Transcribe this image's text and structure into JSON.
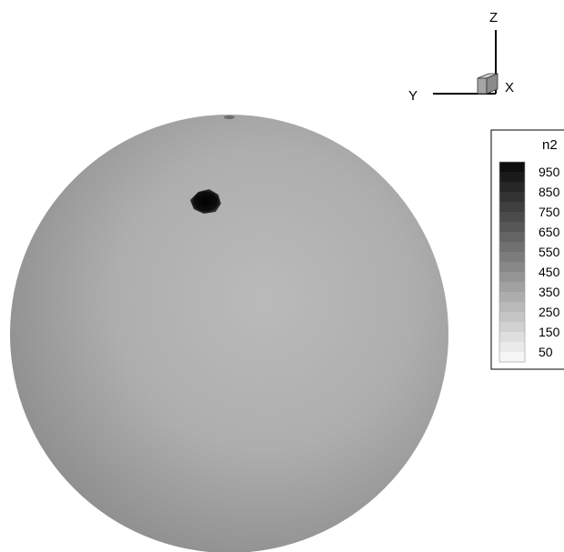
{
  "axes_triad": {
    "z_label": "Z",
    "y_label": "Y",
    "x_label": "X"
  },
  "legend": {
    "title": "n2",
    "min": 0,
    "max": 1000,
    "step": 50,
    "labels": [
      "950",
      "850",
      "750",
      "650",
      "550",
      "450",
      "350",
      "250",
      "150",
      "50"
    ],
    "colors": {
      "high": "#0a0a0a",
      "low": "#ffffff"
    }
  },
  "contour": {
    "sphere_base_value": 350,
    "spot_value": 1000,
    "sphere_color": "#a9a9a9",
    "sphere_highlight": "#b9b9b9",
    "sphere_edge": "#8e8e8e",
    "spot_color": "#050505"
  }
}
